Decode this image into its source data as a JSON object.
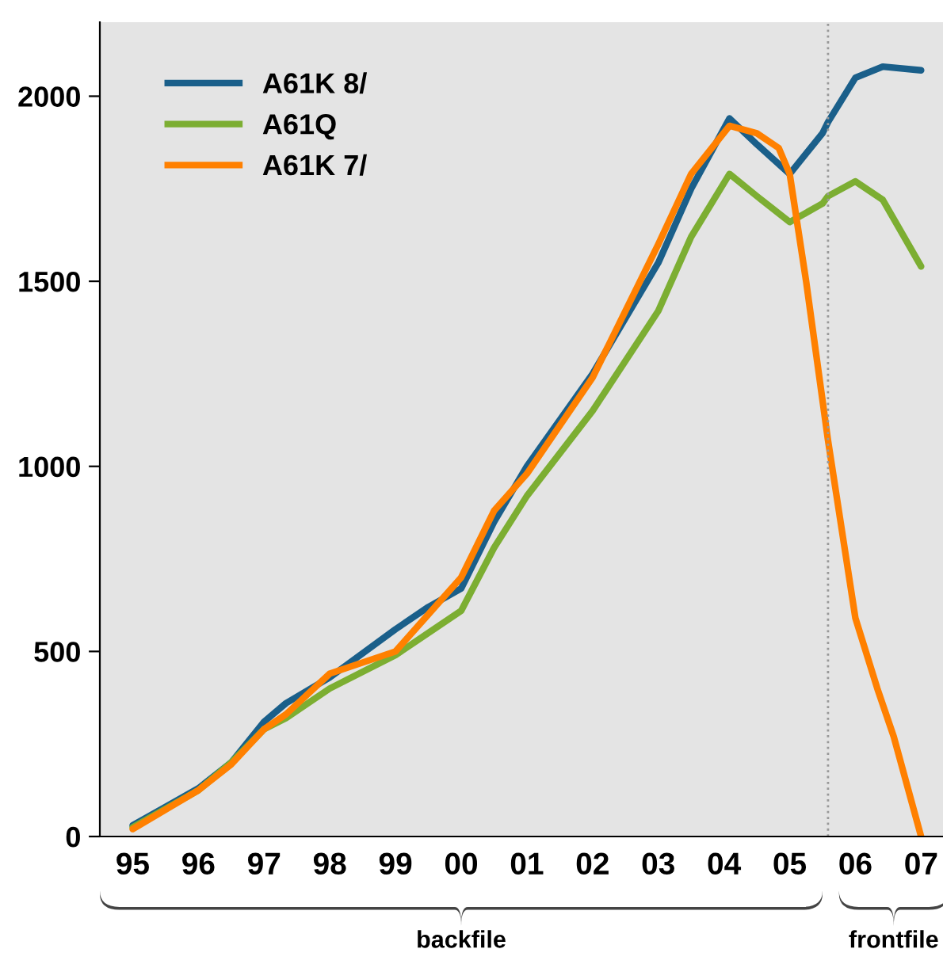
{
  "chart_data": {
    "type": "line",
    "x": [
      "1995-01",
      "1996-01",
      "1996-07",
      "1997-01",
      "1997-05",
      "1998-01",
      "1999-01",
      "1999-07",
      "2000-01",
      "2000-07",
      "2001-01",
      "2002-01",
      "2003-01",
      "2003-07",
      "2004-02",
      "2004-07",
      "2005-01",
      "2005-07",
      "2005-08",
      "2006-01",
      "2006-06",
      "2007-01"
    ],
    "xlim": [
      "1994-07",
      "2007-05"
    ],
    "xticks": [
      {
        "value": "1995-01",
        "label": "95"
      },
      {
        "value": "1996-01",
        "label": "96"
      },
      {
        "value": "1997-01",
        "label": "97"
      },
      {
        "value": "1998-01",
        "label": "98"
      },
      {
        "value": "1999-01",
        "label": "99"
      },
      {
        "value": "2000-01",
        "label": "00"
      },
      {
        "value": "2001-01",
        "label": "01"
      },
      {
        "value": "2002-01",
        "label": "02"
      },
      {
        "value": "2003-01",
        "label": "03"
      },
      {
        "value": "2004-01",
        "label": "04"
      },
      {
        "value": "2005-01",
        "label": "05"
      },
      {
        "value": "2006-01",
        "label": "06"
      },
      {
        "value": "2007-01",
        "label": "07"
      }
    ],
    "ylim": [
      0,
      2200
    ],
    "yticks": [
      0,
      500,
      1000,
      1500,
      2000
    ],
    "series": [
      {
        "name": "A61K 8/",
        "color": "#1a5f8a",
        "values": [
          30,
          130,
          200,
          310,
          360,
          430,
          560,
          620,
          670,
          850,
          1000,
          1250,
          1550,
          1750,
          1940,
          1870,
          1790,
          1900,
          1930,
          2050,
          2080,
          2070
        ]
      },
      {
        "name": "A61Q",
        "color": "#7cae32",
        "values": [
          25,
          125,
          200,
          290,
          320,
          400,
          490,
          550,
          610,
          780,
          920,
          1150,
          1420,
          1620,
          1790,
          1730,
          1660,
          1710,
          1730,
          1770,
          1720,
          1540
        ]
      },
      {
        "name": "A61K 7/",
        "color": "#ff8000",
        "x": [
          "1995-01",
          "1996-01",
          "1996-07",
          "1997-01",
          "1997-05",
          "1998-01",
          "1999-01",
          "1999-07",
          "2000-01",
          "2000-07",
          "2001-01",
          "2002-01",
          "2003-01",
          "2003-07",
          "2004-02",
          "2004-07",
          "2004-11",
          "2005-01",
          "2005-04",
          "2005-08",
          "2006-01",
          "2006-05",
          "2006-08",
          "2007-01"
        ],
        "values": [
          20,
          125,
          195,
          290,
          330,
          440,
          500,
          600,
          700,
          880,
          980,
          1240,
          1600,
          1790,
          1920,
          1900,
          1860,
          1790,
          1500,
          1070,
          590,
          400,
          270,
          0
        ]
      }
    ],
    "ref_lines": [
      {
        "axis": "x",
        "value": "2005-08",
        "color": "#999999",
        "line_style": "dotted"
      }
    ],
    "annotations": [
      "backfile",
      "frontfile"
    ],
    "legend": "top left",
    "grid": false,
    "marker": "none",
    "line_style": "solid"
  }
}
